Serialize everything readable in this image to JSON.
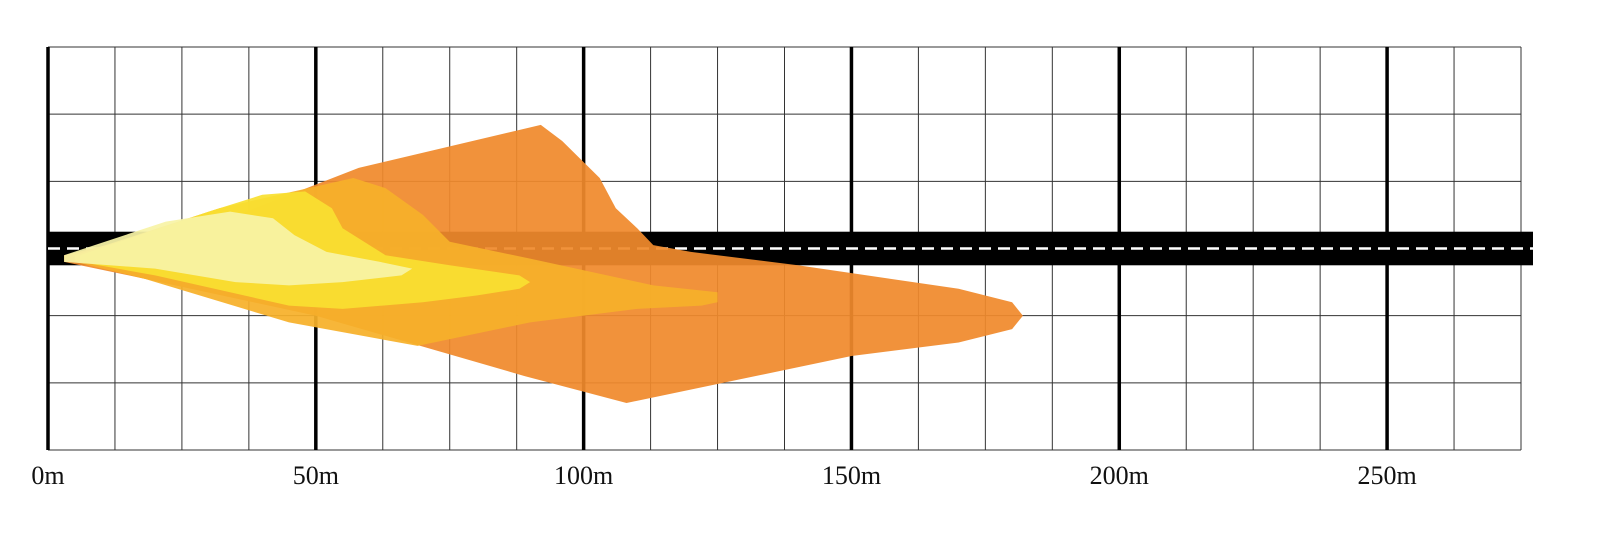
{
  "chart_data": {
    "type": "area",
    "title": "",
    "xlabel": "",
    "ylabel": "",
    "x_unit": "m",
    "xlim": [
      0,
      275
    ],
    "ylim": [
      -3,
      3
    ],
    "grid": true,
    "minor_grid_step_m": 12.5,
    "major_grid_step_m": 50,
    "x_ticks": [
      {
        "value": 0,
        "label": "0m"
      },
      {
        "value": 50,
        "label": "50m"
      },
      {
        "value": 100,
        "label": "100m"
      },
      {
        "value": 150,
        "label": "150m"
      },
      {
        "value": 200,
        "label": "200m"
      },
      {
        "value": 250,
        "label": "250m"
      }
    ],
    "road": {
      "y_from": -0.25,
      "y_to": 0.25,
      "color": "#000000",
      "center_line_color": "#ffffff"
    },
    "series": [
      {
        "color": "#F08A2C",
        "points": [
          [
            3,
            -0.1
          ],
          [
            37,
            0.55
          ],
          [
            58,
            1.2
          ],
          [
            92,
            1.84
          ],
          [
            96,
            1.6
          ],
          [
            103,
            1.05
          ],
          [
            106,
            0.6
          ],
          [
            110,
            0.3
          ],
          [
            113,
            0.05
          ],
          [
            120,
            -0.05
          ],
          [
            140,
            -0.25
          ],
          [
            170,
            -0.6
          ],
          [
            180,
            -0.8
          ],
          [
            182,
            -1.0
          ],
          [
            180,
            -1.2
          ],
          [
            170,
            -1.4
          ],
          [
            150,
            -1.6
          ],
          [
            108,
            -2.3
          ],
          [
            89,
            -1.9
          ],
          [
            50,
            -1.0
          ],
          [
            18,
            -0.45
          ],
          [
            3,
            -0.2
          ]
        ]
      },
      {
        "color": "#F6B02A",
        "points": [
          [
            5,
            -0.1
          ],
          [
            32,
            0.6
          ],
          [
            57,
            1.05
          ],
          [
            63,
            0.9
          ],
          [
            70,
            0.5
          ],
          [
            75,
            0.1
          ],
          [
            90,
            -0.15
          ],
          [
            113,
            -0.55
          ],
          [
            125,
            -0.65
          ],
          [
            125,
            -0.8
          ],
          [
            122,
            -0.85
          ],
          [
            110,
            -0.9
          ],
          [
            90,
            -1.1
          ],
          [
            69,
            -1.45
          ],
          [
            45,
            -1.1
          ],
          [
            18,
            -0.45
          ],
          [
            5,
            -0.2
          ]
        ]
      },
      {
        "color": "#F9E030",
        "points": [
          [
            6,
            -0.1
          ],
          [
            30,
            0.55
          ],
          [
            40,
            0.8
          ],
          [
            48,
            0.85
          ],
          [
            53,
            0.6
          ],
          [
            55,
            0.3
          ],
          [
            63,
            -0.1
          ],
          [
            75,
            -0.25
          ],
          [
            88,
            -0.4
          ],
          [
            90,
            -0.5
          ],
          [
            88,
            -0.6
          ],
          [
            80,
            -0.7
          ],
          [
            70,
            -0.8
          ],
          [
            55,
            -0.9
          ],
          [
            45,
            -0.85
          ],
          [
            20,
            -0.4
          ],
          [
            6,
            -0.2
          ]
        ]
      },
      {
        "color": "#F7F3A6",
        "points": [
          [
            3,
            -0.1
          ],
          [
            22,
            0.4
          ],
          [
            34,
            0.55
          ],
          [
            42,
            0.45
          ],
          [
            46,
            0.2
          ],
          [
            52,
            -0.05
          ],
          [
            62,
            -0.2
          ],
          [
            68,
            -0.3
          ],
          [
            66,
            -0.4
          ],
          [
            55,
            -0.5
          ],
          [
            45,
            -0.55
          ],
          [
            35,
            -0.5
          ],
          [
            20,
            -0.3
          ],
          [
            3,
            -0.2
          ]
        ]
      }
    ]
  }
}
